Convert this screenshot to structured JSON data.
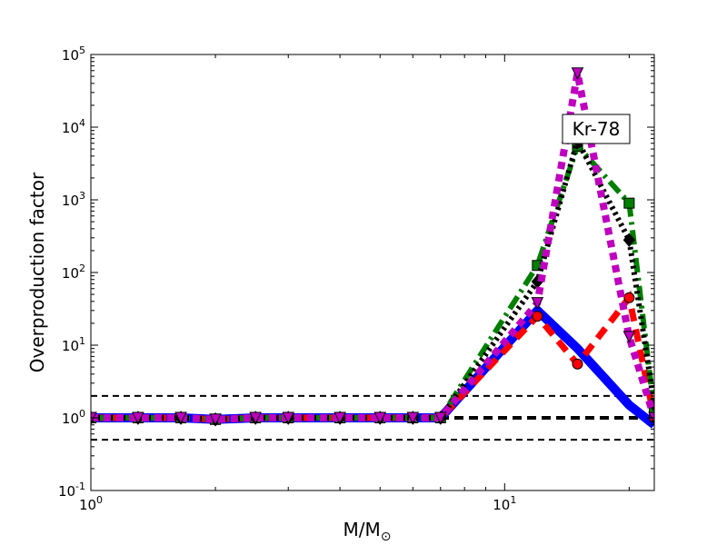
{
  "chart_data": {
    "type": "line",
    "xscale": "log",
    "yscale": "log",
    "xlim": [
      1,
      23
    ],
    "ylim": [
      0.1,
      100000
    ],
    "xlabel": "M/M",
    "xlabel_sub": "⊙",
    "ylabel": "Overproduction factor",
    "annotation": "Kr-78",
    "x_ticks": [
      {
        "value": 1,
        "base": "10",
        "exp": "0"
      },
      {
        "value": 10,
        "base": "10",
        "exp": "1"
      }
    ],
    "y_ticks": [
      {
        "value": 0.1,
        "base": "10",
        "exp": "-1"
      },
      {
        "value": 1,
        "base": "10",
        "exp": "0"
      },
      {
        "value": 10,
        "base": "10",
        "exp": "1"
      },
      {
        "value": 100,
        "base": "10",
        "exp": "2"
      },
      {
        "value": 1000,
        "base": "10",
        "exp": "3"
      },
      {
        "value": 10000,
        "base": "10",
        "exp": "4"
      },
      {
        "value": 100000,
        "base": "10",
        "exp": "5"
      }
    ],
    "reference_lines": [
      {
        "y": 0.5,
        "color": "#000000",
        "dash": "dashed"
      },
      {
        "y": 1.0,
        "color": "#000000",
        "dash": "dashed-thick"
      },
      {
        "y": 2.0,
        "color": "#000000",
        "dash": "dashed"
      }
    ],
    "series": [
      {
        "color": "#0000ff",
        "style": "solid",
        "marker": "none",
        "x": [
          1,
          1.3,
          1.65,
          2,
          2.5,
          3,
          4,
          5,
          6,
          7,
          12,
          15,
          20,
          23
        ],
        "y": [
          1,
          1,
          1,
          0.95,
          1,
          1,
          1,
          1,
          1,
          1,
          30,
          9,
          1.5,
          0.8
        ]
      },
      {
        "color": "#ff0000",
        "style": "dashed",
        "marker": "circle",
        "x": [
          1,
          1.3,
          1.65,
          2,
          2.5,
          3,
          4,
          5,
          6,
          7,
          12,
          15,
          20,
          23
        ],
        "y": [
          1,
          1,
          1,
          0.95,
          1,
          1,
          1,
          1,
          1,
          1,
          25,
          5.5,
          45,
          1
        ]
      },
      {
        "color": "#007f00",
        "style": "dashdot",
        "marker": "square",
        "x": [
          1,
          1.3,
          1.65,
          2,
          2.5,
          3,
          4,
          5,
          6,
          7,
          12,
          15,
          20,
          23
        ],
        "y": [
          1,
          1,
          1,
          0.95,
          1,
          1,
          1,
          1,
          1,
          1,
          125,
          5500,
          900,
          1.2
        ]
      },
      {
        "color": "#000000",
        "style": "dotted",
        "marker": "diamond",
        "x": [
          1,
          1.3,
          1.65,
          2,
          2.5,
          3,
          4,
          5,
          6,
          7,
          12,
          15,
          20,
          23
        ],
        "y": [
          1,
          1,
          1,
          0.95,
          1,
          1,
          1,
          1,
          1,
          1,
          75,
          6500,
          280,
          1.5
        ]
      },
      {
        "color": "#bf00bf",
        "style": "dotted",
        "marker": "triangle-down",
        "x": [
          1,
          1.3,
          1.65,
          2,
          2.5,
          3,
          4,
          5,
          6,
          7,
          12,
          15,
          20,
          23
        ],
        "y": [
          1,
          1,
          1,
          0.95,
          1,
          1,
          1,
          1,
          1,
          1,
          38,
          55000,
          13,
          1
        ]
      }
    ]
  }
}
